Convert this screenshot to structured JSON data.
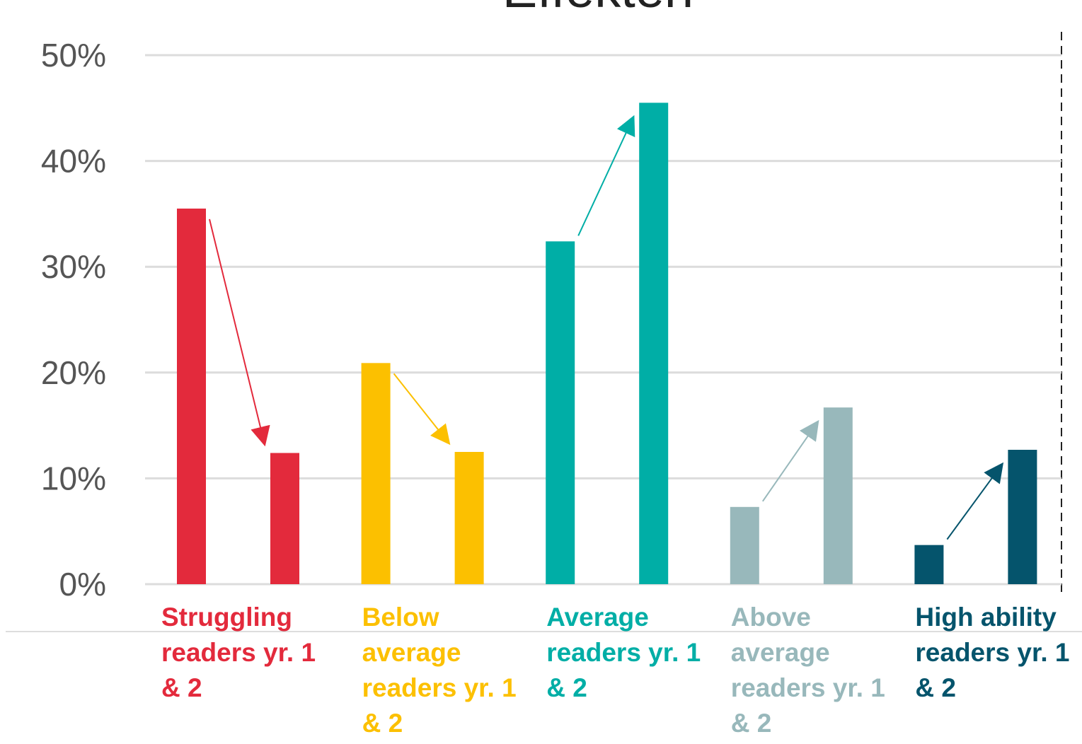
{
  "chart_data": {
    "type": "bar",
    "title": "Effekten",
    "categories": [
      "Struggling readers yr. 1 & 2",
      "Below average readers yr. 1 & 2",
      "Average readers yr. 1 & 2",
      "Above average readers yr. 1 & 2",
      "High ability readers yr. 1 & 2"
    ],
    "colors": [
      "#e32a3c",
      "#fcc000",
      "#00aea6",
      "#98b8bb",
      "#05546c"
    ],
    "series": [
      {
        "values": [
          35.5,
          20.9,
          32.4,
          7.3,
          3.7
        ]
      },
      {
        "values": [
          12.4,
          12.5,
          45.5,
          16.7,
          12.7
        ]
      }
    ],
    "ylim": [
      0,
      50
    ],
    "yticks": [
      {
        "value": 0,
        "label": "0%"
      },
      {
        "value": 10,
        "label": "10%"
      },
      {
        "value": 20,
        "label": "20%"
      },
      {
        "value": 30,
        "label": "30%"
      },
      {
        "value": 40,
        "label": "40%"
      },
      {
        "value": 50,
        "label": "50%"
      }
    ],
    "grid": true
  }
}
